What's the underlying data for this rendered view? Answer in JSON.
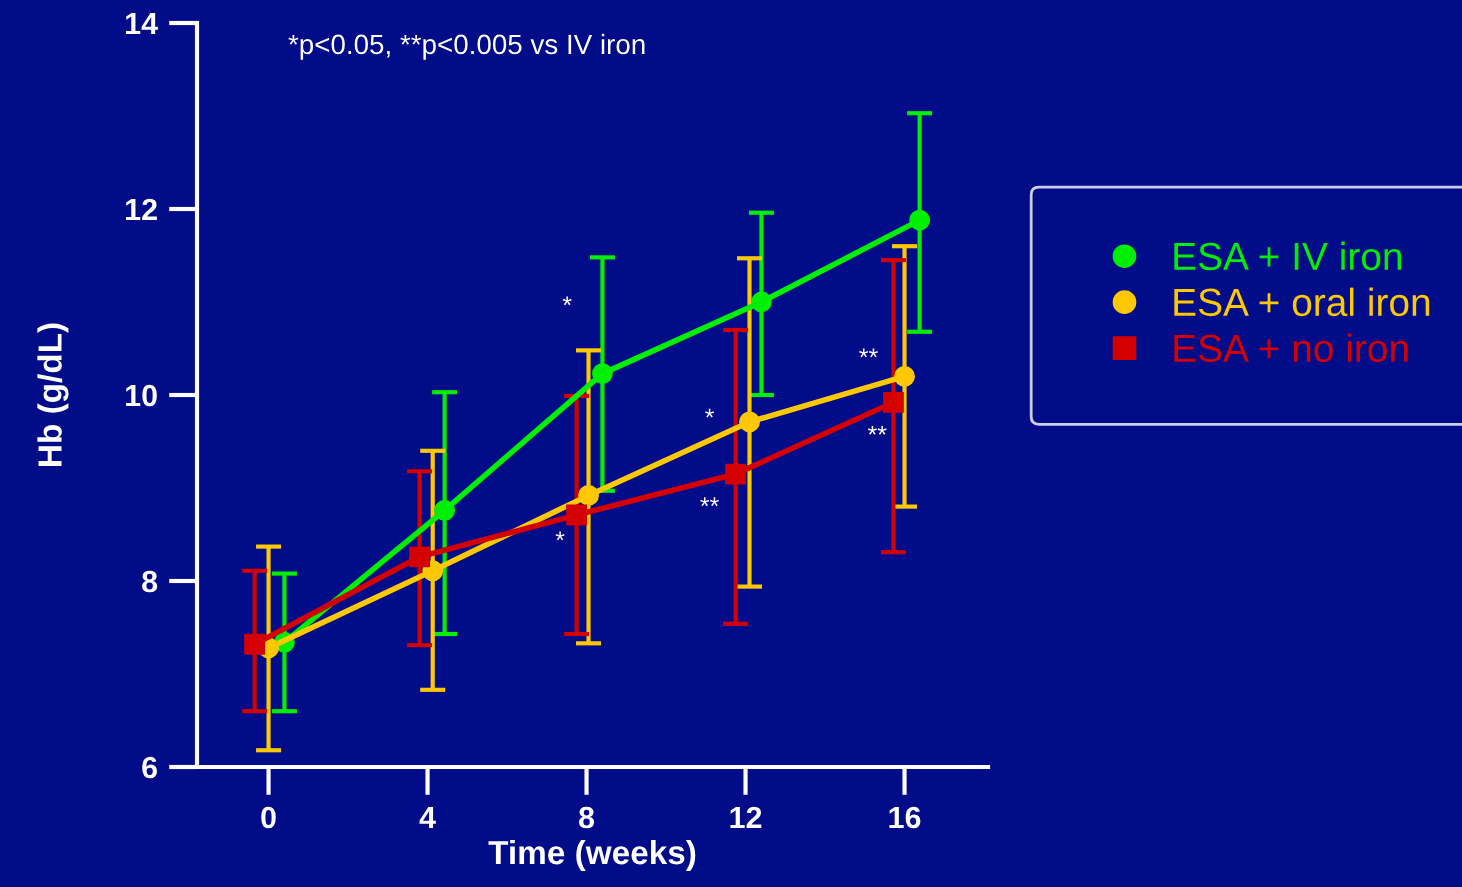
{
  "chart_data": {
    "type": "line",
    "xlabel": "Time (weeks)",
    "ylabel": "Hb (g/dL)",
    "xlim": [
      -1.8,
      18.1
    ],
    "xticks": [
      0,
      4,
      8,
      12,
      16
    ],
    "ylim": [
      6,
      14
    ],
    "yticks": [
      6,
      8,
      10,
      12,
      14
    ],
    "grid": false,
    "legend": "right",
    "line_style": "solid",
    "annotations": [
      "*p<0.05, **p<0.005 vs IV iron",
      "*",
      "*",
      "*",
      "**",
      "**",
      "**"
    ],
    "series": [
      {
        "name": "ESA + IV iron",
        "color": "#00ee00",
        "marker": "circle",
        "x": [
          0.4,
          4.43,
          8.4,
          12.4,
          16.38
        ],
        "values": [
          7.34,
          8.76,
          10.23,
          11.0,
          11.88
        ],
        "errors": [
          [
            6.6,
            8.08
          ],
          [
            7.43,
            10.03
          ],
          [
            8.97,
            11.48
          ],
          [
            10.0,
            11.96
          ],
          [
            10.68,
            13.03
          ]
        ]
      },
      {
        "name": "ESA + oral iron",
        "color": "#ffc800",
        "marker": "circle",
        "x": [
          0,
          4.13,
          8.05,
          12.1,
          16
        ],
        "values": [
          7.28,
          8.11,
          8.92,
          9.71,
          10.2
        ],
        "errors": [
          [
            6.18,
            8.37
          ],
          [
            6.83,
            9.4
          ],
          [
            7.33,
            10.48
          ],
          [
            7.94,
            11.47
          ],
          [
            8.8,
            11.6
          ]
        ]
      },
      {
        "name": "ESA + no iron",
        "color": "#d40000",
        "marker": "square",
        "x": [
          -0.35,
          3.8,
          7.75,
          11.75,
          15.72
        ],
        "values": [
          7.32,
          8.26,
          8.71,
          9.15,
          9.92
        ],
        "errors": [
          [
            6.6,
            8.11
          ],
          [
            7.31,
            9.18
          ],
          [
            7.43,
            9.99
          ],
          [
            7.54,
            10.7
          ],
          [
            8.31,
            11.45
          ]
        ]
      }
    ]
  }
}
